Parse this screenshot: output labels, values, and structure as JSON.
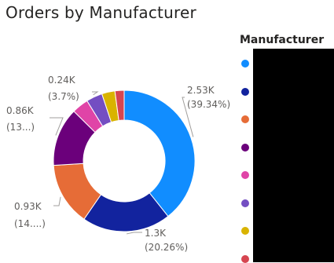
{
  "chart_data": {
    "type": "pie",
    "variant": "donut",
    "title": "Orders by Manufacturer",
    "legend": {
      "title": "Manufacturer",
      "placement": "right",
      "labels_redacted": true
    },
    "slices": [
      {
        "value_label": "2.53K",
        "pct_label": "(39.34%)",
        "percent": 39.34,
        "color": "#118DFF"
      },
      {
        "value_label": "1.3K",
        "pct_label": "(20.26%)",
        "percent": 20.26,
        "color": "#12239E"
      },
      {
        "value_label": "0.93K",
        "pct_label": "(14....)",
        "percent": 14.4,
        "color": "#E66C37"
      },
      {
        "value_label": "0.86K",
        "pct_label": "(13...)",
        "percent": 13.4,
        "color": "#6B007B"
      },
      {
        "value_label": "",
        "pct_label": "",
        "percent": 3.8,
        "color": "#E044A7"
      },
      {
        "value_label": "0.24K",
        "pct_label": "(3.7%)",
        "percent": 3.7,
        "color": "#744EC2"
      },
      {
        "value_label": "",
        "pct_label": "",
        "percent": 3.0,
        "color": "#D9B300"
      },
      {
        "value_label": "",
        "pct_label": "",
        "percent": 2.1,
        "color": "#D64550"
      }
    ]
  }
}
